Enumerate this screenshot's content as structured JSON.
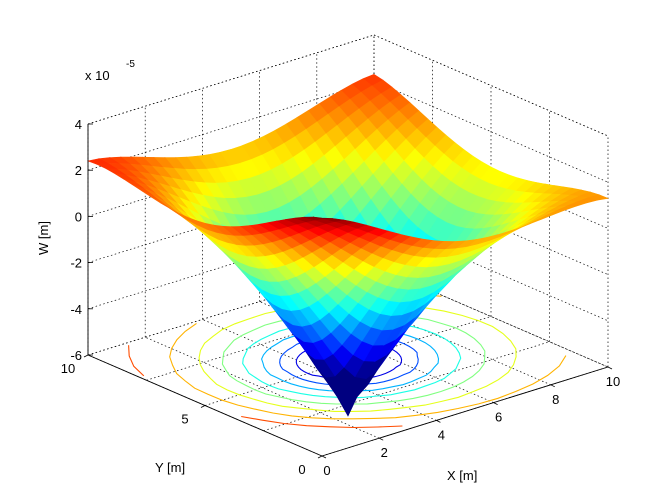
{
  "chart_data": {
    "type": "surface3d",
    "title": "",
    "xlabel": "X [m]",
    "ylabel": "Y [m]",
    "zlabel": "W [m]",
    "z_exponent_label": "x 10",
    "z_exponent_power": "-5",
    "xlim": [
      0,
      10
    ],
    "ylim": [
      0,
      10
    ],
    "zlim": [
      -6,
      4
    ],
    "zlim_units": "1e-5 m",
    "x_ticks": [
      "0",
      "2",
      "4",
      "6",
      "8",
      "10"
    ],
    "y_ticks": [
      "0",
      "5",
      "10"
    ],
    "z_ticks": [
      "-6",
      "-4",
      "-2",
      "0",
      "2",
      "4"
    ],
    "grid": true,
    "colormap": "jet",
    "surface": {
      "description_values": {
        "corner_x0_y0": 4.3,
        "corner_x10_y0": 1.3,
        "corner_x0_y10": 2.4,
        "corner_x10_y10": 2.3,
        "center_x5_y5": -5.8
      }
    },
    "contour_levels": [
      -5.0,
      -4.0,
      -3.0,
      -2.0,
      -1.0,
      0.0,
      1.0,
      2.0
    ],
    "colors": {
      "min": "#00008f",
      "mid": "#7fff7f",
      "max": "#800000"
    }
  }
}
